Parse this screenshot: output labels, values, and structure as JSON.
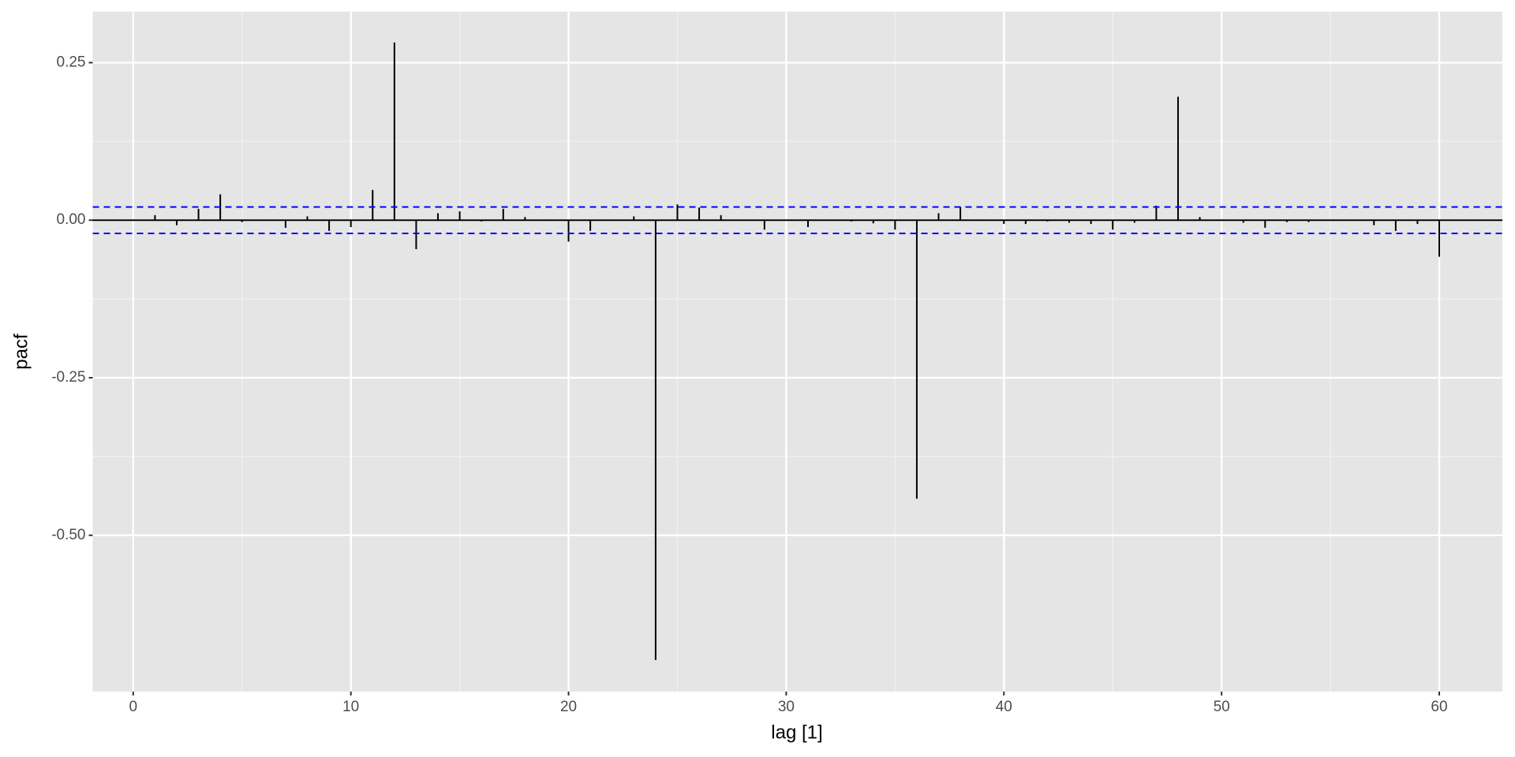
{
  "chart_data": {
    "type": "bar",
    "x_label": "lag [1]",
    "y_label": "pacf",
    "x": [
      1,
      2,
      3,
      4,
      5,
      6,
      7,
      8,
      9,
      10,
      11,
      12,
      13,
      14,
      15,
      16,
      17,
      18,
      19,
      20,
      21,
      22,
      23,
      24,
      25,
      26,
      27,
      28,
      29,
      30,
      31,
      32,
      33,
      34,
      35,
      36,
      37,
      38,
      39,
      40,
      41,
      42,
      43,
      44,
      45,
      46,
      47,
      48,
      49,
      50,
      51,
      52,
      53,
      54,
      55,
      56,
      57,
      58,
      59,
      60
    ],
    "values": [
      0.008,
      -0.008,
      0.018,
      0.041,
      -0.003,
      0.001,
      -0.012,
      0.006,
      -0.017,
      -0.011,
      0.048,
      0.282,
      -0.046,
      0.011,
      0.014,
      -0.002,
      0.018,
      0.005,
      0.001,
      -0.034,
      -0.017,
      0,
      0.006,
      -0.698,
      0.025,
      0.02,
      0.008,
      -0.001,
      -0.015,
      0,
      -0.011,
      -0.001,
      -0.002,
      -0.005,
      -0.015,
      -0.442,
      0.011,
      0.021,
      0.001,
      -0.006,
      -0.006,
      -0.002,
      -0.004,
      -0.006,
      -0.015,
      -0.004,
      0.023,
      0.196,
      0.005,
      -0.001,
      -0.004,
      -0.012,
      -0.003,
      -0.003,
      -0.001,
      0.001,
      -0.008,
      -0.017,
      -0.006,
      -0.058
    ],
    "color": "#000000",
    "ci_lines": {
      "values": [
        0.021,
        -0.021
      ],
      "color": "#0000ff"
    },
    "xlim": [
      -1.86,
      62.9
    ],
    "ylim": [
      -0.748,
      0.331
    ],
    "xticks": [
      0,
      10,
      20,
      30,
      40,
      50,
      60
    ],
    "yticks": [
      {
        "value": -0.5,
        "label": "-0.50"
      },
      -0.25,
      {
        "value": 0,
        "label": "0.00"
      },
      0.25
    ],
    "grid": true
  }
}
